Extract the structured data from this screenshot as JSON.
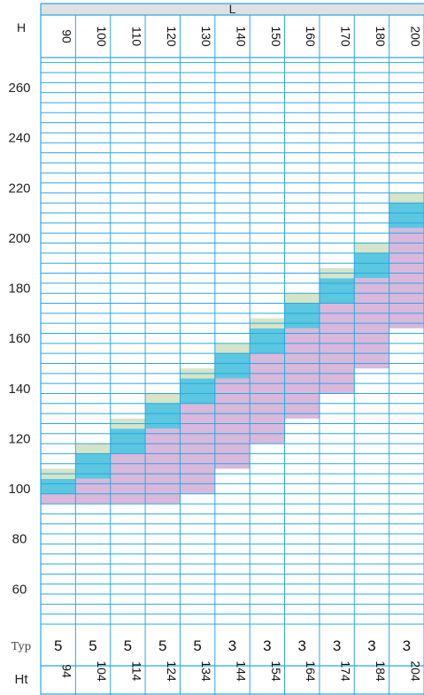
{
  "chart_data": {
    "type": "table",
    "corner_label": "H",
    "top_label": "L",
    "columns": [
      90,
      100,
      110,
      120,
      130,
      140,
      150,
      160,
      170,
      180,
      200
    ],
    "ylim": [
      46,
      272
    ],
    "y_ticks": [
      60,
      80,
      100,
      120,
      140,
      160,
      180,
      200,
      220,
      240,
      260
    ],
    "colors": {
      "grid": "#29a9e0",
      "header_fill": "#dfe0e2",
      "cap": "#d6e4c8",
      "cyan": "#5bc7e0",
      "pink": "#d9b8dc"
    },
    "bands": [
      {
        "col": 90,
        "cap": [
          104,
          108
        ],
        "cyan": [
          98,
          104
        ],
        "pink": [
          94,
          98
        ]
      },
      {
        "col": 100,
        "cap": [
          114,
          118
        ],
        "cyan": [
          104,
          114
        ],
        "pink": [
          94,
          104
        ]
      },
      {
        "col": 110,
        "cap": [
          124,
          128
        ],
        "cyan": [
          114,
          124
        ],
        "pink": [
          94,
          114
        ]
      },
      {
        "col": 120,
        "cap": [
          134,
          138
        ],
        "cyan": [
          124,
          134
        ],
        "pink": [
          94,
          124
        ]
      },
      {
        "col": 130,
        "cap": [
          144,
          148
        ],
        "cyan": [
          134,
          144
        ],
        "pink": [
          98,
          134
        ]
      },
      {
        "col": 140,
        "cap": [
          154,
          158
        ],
        "cyan": [
          144,
          154
        ],
        "pink": [
          108,
          144
        ]
      },
      {
        "col": 150,
        "cap": [
          164,
          168
        ],
        "cyan": [
          154,
          164
        ],
        "pink": [
          118,
          154
        ]
      },
      {
        "col": 160,
        "cap": [
          174,
          178
        ],
        "cyan": [
          164,
          174
        ],
        "pink": [
          128,
          164
        ]
      },
      {
        "col": 170,
        "cap": [
          184,
          188
        ],
        "cyan": [
          174,
          184
        ],
        "pink": [
          138,
          174
        ]
      },
      {
        "col": 180,
        "cap": [
          194,
          198
        ],
        "cyan": [
          184,
          194
        ],
        "pink": [
          148,
          184
        ]
      },
      {
        "col": 200,
        "cap": [
          214,
          218
        ],
        "cyan": [
          204,
          214
        ],
        "pink": [
          164,
          204
        ]
      }
    ],
    "typ_label": "Typ",
    "typ_values": [
      5,
      5,
      5,
      5,
      5,
      3,
      3,
      3,
      3,
      3,
      3
    ],
    "ht_label": "Ht",
    "ht_values": [
      94,
      104,
      114,
      124,
      134,
      144,
      154,
      164,
      174,
      184,
      204
    ]
  }
}
